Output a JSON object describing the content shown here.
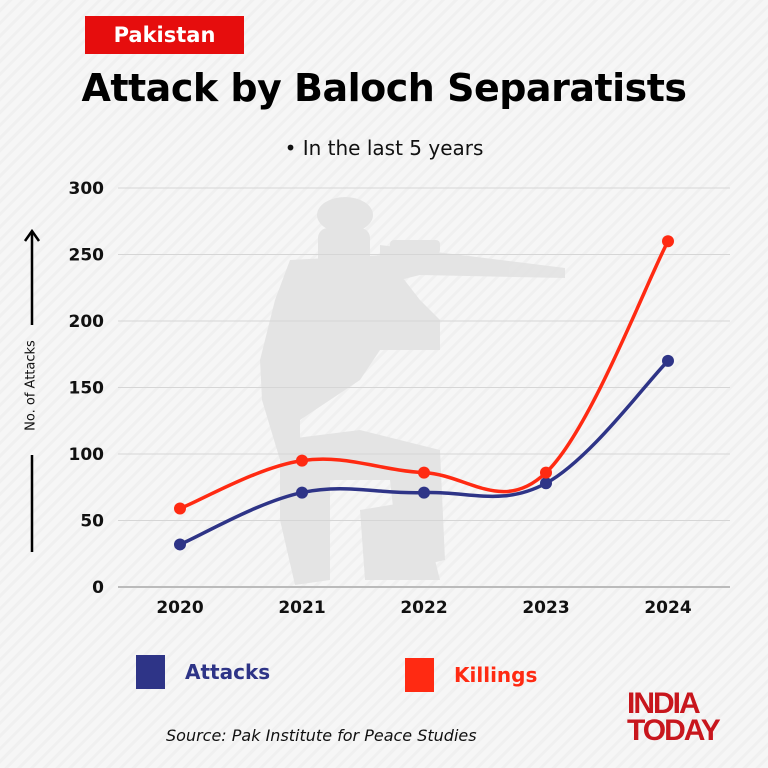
{
  "header": {
    "tag": "Pakistan",
    "title": "Attack by Baloch Separatists",
    "subtitle": "In the last 5 years"
  },
  "colors": {
    "attacks": "#2e3487",
    "killings": "#ff2a12",
    "tag_bg": "#e60d0d",
    "logo": "#c8161d"
  },
  "chart_data": {
    "type": "line",
    "title": "Attack by Baloch Separatists",
    "subtitle": "In the last 5 years",
    "xlabel": "",
    "ylabel": "No. of Attacks",
    "categories": [
      "2020",
      "2021",
      "2022",
      "2023",
      "2024"
    ],
    "series": [
      {
        "name": "Attacks",
        "color": "#2e3487",
        "values": [
          32,
          71,
          71,
          78,
          170
        ]
      },
      {
        "name": "Killings",
        "color": "#ff2a12",
        "values": [
          59,
          95,
          86,
          86,
          260
        ]
      }
    ],
    "yticks": [
      "0",
      "50",
      "100",
      "150",
      "200",
      "250",
      "300"
    ],
    "ylim": [
      0,
      300
    ],
    "grid": true,
    "legend_position": "bottom",
    "smooth": true
  },
  "legend": {
    "attacks": "Attacks",
    "killings": "Killings"
  },
  "footer": {
    "source": "Source: Pak Institute for Peace Studies",
    "logo_line1": "INDIA",
    "logo_line2": "TODAY"
  }
}
